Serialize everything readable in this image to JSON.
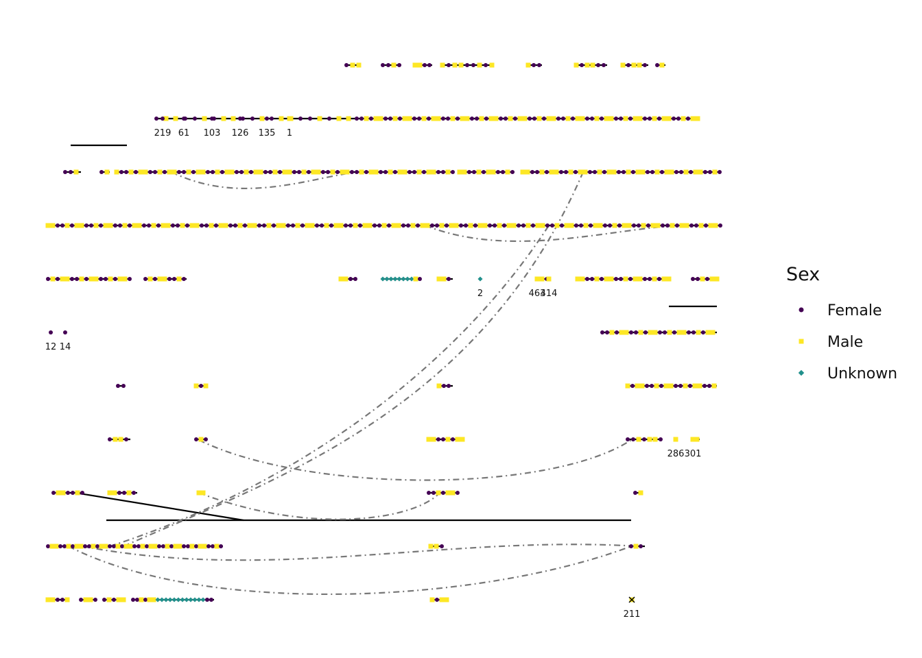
{
  "legend": {
    "title": "Sex",
    "items": [
      {
        "label": "Female"
      },
      {
        "label": "Male"
      },
      {
        "label": "Unknown"
      }
    ]
  },
  "nodes": [
    {
      "label": "12",
      "sex": "Female"
    },
    {
      "label": "14",
      "sex": "Female"
    },
    {
      "label": "219",
      "sex": "Female"
    },
    {
      "label": "61",
      "sex": "Female"
    },
    {
      "label": "103",
      "sex": "Female"
    },
    {
      "label": "126",
      "sex": "Female"
    },
    {
      "label": "135",
      "sex": "Female"
    },
    {
      "label": "1",
      "sex": "Male"
    },
    {
      "label": "2",
      "sex": "Unknown"
    },
    {
      "label": "463",
      "sex": "Male"
    },
    {
      "label": "414",
      "sex": "Male"
    },
    {
      "label": "301",
      "sex": "Male"
    },
    {
      "label": "286",
      "sex": "Male"
    },
    {
      "label": "211",
      "sex": "Male"
    }
  ]
}
